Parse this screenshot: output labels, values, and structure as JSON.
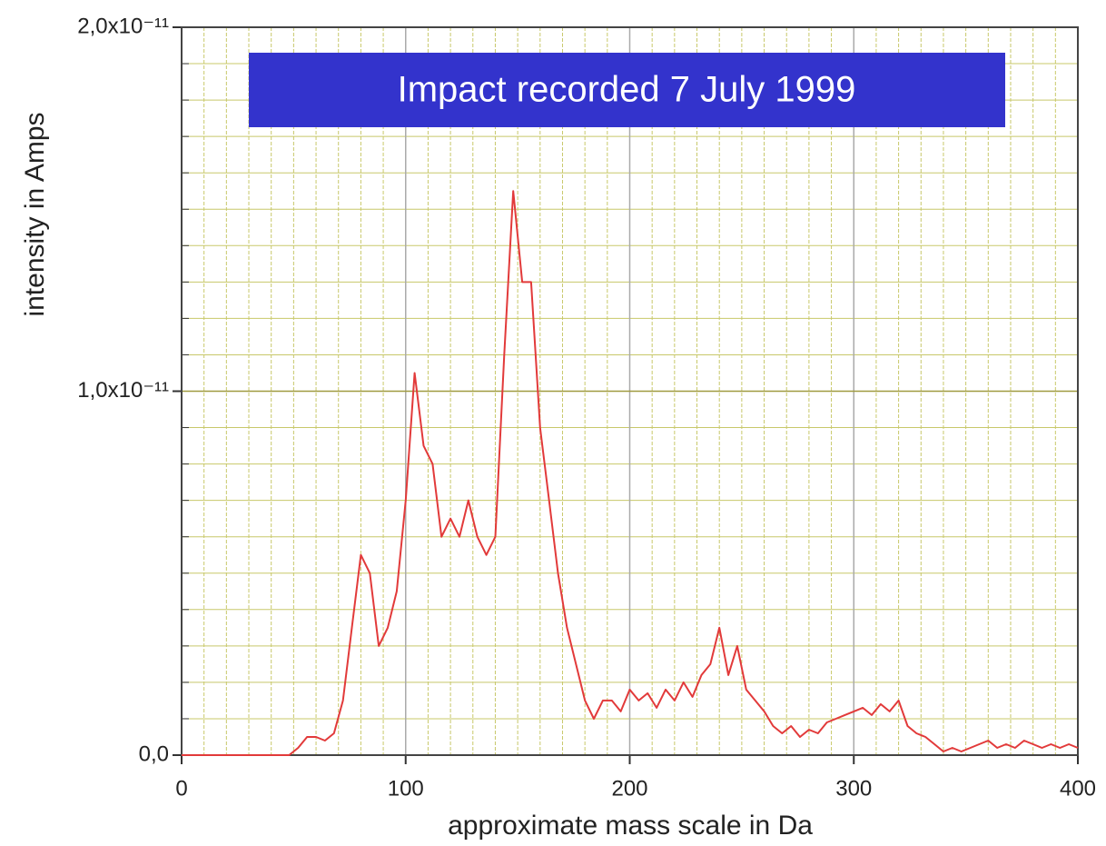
{
  "chart_data": {
    "type": "line",
    "title": "Impact recorded 7 July 1999",
    "x_label": "approximate mass scale in Da",
    "y_label": "intensity in Amps",
    "x": [
      0,
      4,
      8,
      12,
      16,
      20,
      24,
      28,
      32,
      36,
      40,
      44,
      48,
      52,
      56,
      60,
      64,
      68,
      72,
      76,
      80,
      84,
      88,
      92,
      96,
      100,
      104,
      108,
      112,
      116,
      120,
      124,
      128,
      132,
      136,
      140,
      144,
      148,
      152,
      156,
      160,
      164,
      168,
      172,
      176,
      180,
      184,
      188,
      192,
      196,
      200,
      204,
      208,
      212,
      216,
      220,
      224,
      228,
      232,
      236,
      240,
      244,
      248,
      252,
      256,
      260,
      264,
      268,
      272,
      276,
      280,
      284,
      288,
      292,
      296,
      300,
      304,
      308,
      312,
      316,
      320,
      324,
      328,
      332,
      336,
      340,
      344,
      348,
      352,
      356,
      360,
      364,
      368,
      372,
      376,
      380,
      384,
      388,
      392,
      396,
      400
    ],
    "values": [
      0,
      0,
      0,
      0,
      0,
      0,
      0,
      0,
      0,
      0,
      0,
      0,
      0,
      2e-13,
      5e-13,
      5e-13,
      4e-13,
      6e-13,
      1.5e-12,
      3.5e-12,
      5.5e-12,
      5e-12,
      3e-12,
      3.5e-12,
      4.5e-12,
      7e-12,
      1.05e-11,
      8.5e-12,
      8e-12,
      6e-12,
      6.5e-12,
      6e-12,
      7e-12,
      6e-12,
      5.5e-12,
      6e-12,
      1.1e-11,
      1.55e-11,
      1.3e-11,
      1.3e-11,
      9e-12,
      7e-12,
      5e-12,
      3.5e-12,
      2.5e-12,
      1.5e-12,
      1e-12,
      1.5e-12,
      1.5e-12,
      1.2e-12,
      1.8e-12,
      1.5e-12,
      1.7e-12,
      1.3e-12,
      1.8e-12,
      1.5e-12,
      2e-12,
      1.6e-12,
      2.2e-12,
      2.5e-12,
      3.5e-12,
      2.2e-12,
      3e-12,
      1.8e-12,
      1.5e-12,
      1.2e-12,
      8e-13,
      6e-13,
      8e-13,
      5e-13,
      7e-13,
      6e-13,
      9e-13,
      1e-12,
      1.1e-12,
      1.2e-12,
      1.3e-12,
      1.1e-12,
      1.4e-12,
      1.2e-12,
      1.5e-12,
      8e-13,
      6e-13,
      5e-13,
      3e-13,
      1e-13,
      2e-13,
      1e-13,
      2e-13,
      3e-13,
      4e-13,
      2e-13,
      3e-13,
      2e-13,
      4e-13,
      3e-13,
      2e-13,
      3e-13,
      2e-13,
      3e-13,
      2e-13
    ],
    "color": "#e23a3a",
    "xlim": [
      0,
      400
    ],
    "xticks": [
      0,
      100,
      200,
      300,
      400
    ],
    "ylim": [
      0,
      2e-11
    ],
    "yticks": [
      {
        "value": 0,
        "label": "0,0"
      },
      {
        "value": 1e-11,
        "label": "1,0x10⁻¹¹"
      },
      {
        "value": 2e-11,
        "label": "2,0x10⁻¹¹"
      }
    ],
    "grid": true,
    "grid_subdivisions": 10,
    "grid_color": "#c8c86a"
  }
}
